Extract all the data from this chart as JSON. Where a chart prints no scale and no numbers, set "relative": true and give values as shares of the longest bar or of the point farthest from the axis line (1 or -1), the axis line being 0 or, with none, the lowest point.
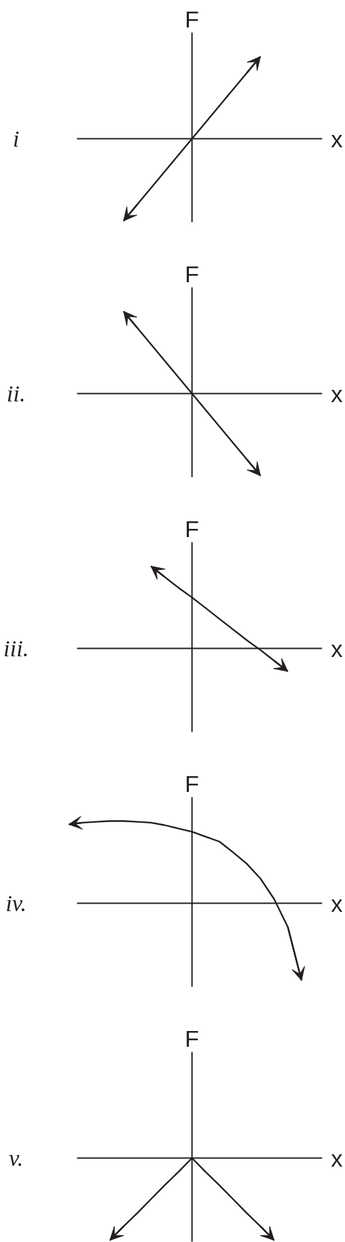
{
  "chart_data": [
    {
      "type": "line",
      "title": "i",
      "xlabel": "x",
      "ylabel": "F",
      "relative": true,
      "tick_labels": false,
      "categories": [
        null,
        null,
        null,
        null,
        null,
        null,
        null,
        null,
        null,
        null,
        null,
        null,
        null,
        null,
        null,
        null,
        null,
        null,
        null
      ],
      "series": [
        {
          "color": "#231f20",
          "values": [
            null,
            null,
            null,
            null,
            -1,
            -0.8,
            -0.6,
            -0.4,
            -0.2,
            0,
            0.2,
            0.4,
            0.6,
            0.8,
            1,
            null,
            null,
            null,
            null
          ]
        }
      ]
    },
    {
      "type": "line",
      "title": "ii.",
      "xlabel": "x",
      "ylabel": "F",
      "relative": true,
      "tick_labels": false,
      "categories": [
        null,
        null,
        null,
        null,
        null,
        null,
        null,
        null,
        null,
        null,
        null,
        null,
        null,
        null,
        null,
        null,
        null,
        null,
        null
      ],
      "series": [
        {
          "color": "#231f20",
          "values": [
            null,
            null,
            null,
            null,
            1,
            0.8,
            0.6,
            0.4,
            0.2,
            0,
            -0.2,
            -0.4,
            -0.6,
            -0.8,
            -1,
            null,
            null,
            null,
            null
          ]
        }
      ]
    },
    {
      "type": "line",
      "title": "iii.",
      "xlabel": "x",
      "ylabel": "F",
      "relative": true,
      "tick_labels": false,
      "categories": [
        null,
        null,
        null,
        null,
        null,
        null,
        null,
        null,
        null,
        null,
        null,
        null,
        null,
        null,
        null,
        null,
        null,
        null,
        null
      ],
      "series": [
        {
          "color": "#231f20",
          "values": [
            null,
            null,
            null,
            null,
            null,
            null,
            1,
            0.87,
            0.74,
            0.62,
            0.49,
            0.36,
            0.23,
            0.1,
            -0.02,
            -0.15,
            -0.28,
            null,
            null
          ]
        }
      ]
    },
    {
      "type": "line",
      "title": "iv.",
      "xlabel": "x",
      "ylabel": "F",
      "relative": true,
      "tick_labels": false,
      "categories": [
        null,
        null,
        null,
        null,
        null,
        null,
        null,
        null,
        null,
        null,
        null,
        null,
        null,
        null,
        null,
        null,
        null,
        null,
        null
      ],
      "series": [
        {
          "color": "#231f20",
          "values": [
            0.96,
            0.98,
            0.99,
            1,
            1,
            0.99,
            0.98,
            0.95,
            0.91,
            0.87,
            0.81,
            0.75,
            0.62,
            0.48,
            0.3,
            0.05,
            -0.29,
            -0.94,
            null
          ]
        }
      ]
    },
    {
      "type": "line",
      "title": "v.",
      "xlabel": "x",
      "ylabel": "F",
      "relative": true,
      "tick_labels": false,
      "categories": [
        null,
        null,
        null,
        null,
        null,
        null,
        null,
        null,
        null,
        null,
        null,
        null,
        null,
        null,
        null,
        null,
        null,
        null,
        null
      ],
      "series": [
        {
          "color": "#231f20",
          "values": [
            null,
            null,
            null,
            -1,
            -0.83,
            -0.67,
            -0.5,
            -0.33,
            -0.17,
            0,
            -0.17,
            -0.33,
            -0.5,
            -0.67,
            -0.83,
            -1,
            null,
            null,
            null
          ]
        }
      ]
    }
  ]
}
